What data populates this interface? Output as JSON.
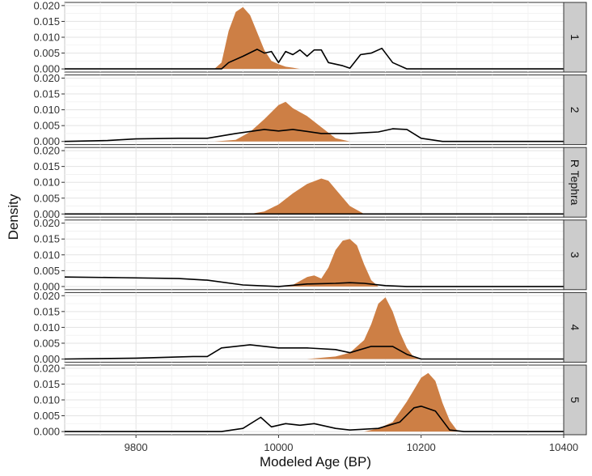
{
  "chart_data": {
    "type": "area",
    "xlabel": "Modeled Age (BP)",
    "ylabel": "Density",
    "xlim": [
      9700,
      10400
    ],
    "ylim": [
      0,
      0.02
    ],
    "x_ticks": [
      "9800",
      "10000",
      "10200",
      "10400"
    ],
    "y_ticks": [
      "0.000",
      "0.005",
      "0.010",
      "0.015",
      "0.020"
    ],
    "grid": true,
    "fill_color": "#CD7F45",
    "line_color": "#000000",
    "panels": [
      {
        "label": "1",
        "filled": [
          [
            9910,
            0
          ],
          [
            9920,
            0.002
          ],
          [
            9930,
            0.012
          ],
          [
            9940,
            0.018
          ],
          [
            9950,
            0.0195
          ],
          [
            9960,
            0.017
          ],
          [
            9970,
            0.0115
          ],
          [
            9980,
            0.006
          ],
          [
            9990,
            0.0025
          ],
          [
            10000,
            0.0015
          ],
          [
            10010,
            0.0007
          ],
          [
            10020,
            0.0004
          ],
          [
            10030,
            0
          ],
          [
            10040,
            0
          ]
        ],
        "line": [
          [
            9700,
            0
          ],
          [
            9920,
            0
          ],
          [
            9930,
            0.002
          ],
          [
            9950,
            0.004
          ],
          [
            9970,
            0.0062
          ],
          [
            9980,
            0.005
          ],
          [
            9990,
            0.0055
          ],
          [
            10000,
            0.002
          ],
          [
            10010,
            0.0055
          ],
          [
            10020,
            0.0045
          ],
          [
            10030,
            0.006
          ],
          [
            10040,
            0.004
          ],
          [
            10050,
            0.006
          ],
          [
            10060,
            0.006
          ],
          [
            10070,
            0.002
          ],
          [
            10090,
            0.001
          ],
          [
            10100,
            0.0002
          ],
          [
            10115,
            0.0045
          ],
          [
            10130,
            0.005
          ],
          [
            10145,
            0.0065
          ],
          [
            10160,
            0.002
          ],
          [
            10180,
            0
          ],
          [
            10200,
            0
          ],
          [
            10400,
            0
          ]
        ]
      },
      {
        "label": "2",
        "filled": [
          [
            9910,
            0
          ],
          [
            9940,
            0.0005
          ],
          [
            9960,
            0.003
          ],
          [
            9980,
            0.007
          ],
          [
            10000,
            0.0115
          ],
          [
            10010,
            0.0125
          ],
          [
            10020,
            0.0105
          ],
          [
            10040,
            0.008
          ],
          [
            10060,
            0.0045
          ],
          [
            10080,
            0.001
          ],
          [
            10100,
            0
          ],
          [
            10110,
            0
          ]
        ],
        "line": [
          [
            9700,
            0
          ],
          [
            9760,
            0.0003
          ],
          [
            9800,
            0.0008
          ],
          [
            9860,
            0.001
          ],
          [
            9900,
            0.001
          ],
          [
            9940,
            0.0025
          ],
          [
            9980,
            0.0038
          ],
          [
            10000,
            0.0033
          ],
          [
            10020,
            0.0038
          ],
          [
            10060,
            0.0025
          ],
          [
            10100,
            0.0025
          ],
          [
            10140,
            0.003
          ],
          [
            10160,
            0.004
          ],
          [
            10180,
            0.0038
          ],
          [
            10200,
            0.001
          ],
          [
            10230,
            0
          ],
          [
            10400,
            0
          ]
        ]
      },
      {
        "label": "R Tephra",
        "filled": [
          [
            9960,
            0
          ],
          [
            9980,
            0.0008
          ],
          [
            10000,
            0.003
          ],
          [
            10020,
            0.0065
          ],
          [
            10040,
            0.0095
          ],
          [
            10060,
            0.0112
          ],
          [
            10070,
            0.0105
          ],
          [
            10080,
            0.0078
          ],
          [
            10100,
            0.0025
          ],
          [
            10120,
            0
          ],
          [
            10130,
            0
          ]
        ],
        "line": [
          [
            9700,
            0
          ],
          [
            10400,
            0
          ]
        ]
      },
      {
        "label": "3",
        "filled": [
          [
            10000,
            0
          ],
          [
            10020,
            0.0005
          ],
          [
            10040,
            0.003
          ],
          [
            10050,
            0.0035
          ],
          [
            10060,
            0.0025
          ],
          [
            10070,
            0.006
          ],
          [
            10080,
            0.0115
          ],
          [
            10090,
            0.0145
          ],
          [
            10100,
            0.015
          ],
          [
            10110,
            0.013
          ],
          [
            10120,
            0.007
          ],
          [
            10130,
            0.002
          ],
          [
            10140,
            0
          ],
          [
            10150,
            0
          ]
        ],
        "line": [
          [
            9700,
            0.003
          ],
          [
            9780,
            0.0028
          ],
          [
            9860,
            0.0025
          ],
          [
            9900,
            0.002
          ],
          [
            9950,
            0.0005
          ],
          [
            10000,
            0
          ],
          [
            10040,
            0.0008
          ],
          [
            10080,
            0.001
          ],
          [
            10100,
            0.0012
          ],
          [
            10120,
            0.001
          ],
          [
            10150,
            0.0003
          ],
          [
            10180,
            0
          ],
          [
            10400,
            0
          ]
        ]
      },
      {
        "label": "4",
        "filled": [
          [
            10040,
            0
          ],
          [
            10080,
            0.0008
          ],
          [
            10100,
            0.002
          ],
          [
            10120,
            0.006
          ],
          [
            10130,
            0.011
          ],
          [
            10140,
            0.0175
          ],
          [
            10150,
            0.0195
          ],
          [
            10160,
            0.015
          ],
          [
            10170,
            0.0085
          ],
          [
            10180,
            0.0035
          ],
          [
            10190,
            0.0005
          ],
          [
            10200,
            0
          ],
          [
            10210,
            0
          ]
        ],
        "line": [
          [
            9700,
            0
          ],
          [
            9800,
            0.0003
          ],
          [
            9880,
            0.0008
          ],
          [
            9900,
            0.0008
          ],
          [
            9920,
            0.0035
          ],
          [
            9960,
            0.0045
          ],
          [
            10000,
            0.0035
          ],
          [
            10040,
            0.0035
          ],
          [
            10080,
            0.003
          ],
          [
            10100,
            0.002
          ],
          [
            10130,
            0.004
          ],
          [
            10160,
            0.004
          ],
          [
            10180,
            0.0015
          ],
          [
            10200,
            0
          ],
          [
            10400,
            0
          ]
        ]
      },
      {
        "label": "5",
        "filled": [
          [
            10120,
            0
          ],
          [
            10140,
            0.001
          ],
          [
            10160,
            0.003
          ],
          [
            10180,
            0.0095
          ],
          [
            10200,
            0.017
          ],
          [
            10210,
            0.0185
          ],
          [
            10220,
            0.016
          ],
          [
            10230,
            0.009
          ],
          [
            10240,
            0.0035
          ],
          [
            10250,
            0.0005
          ],
          [
            10260,
            0
          ],
          [
            10270,
            0
          ]
        ],
        "line": [
          [
            9700,
            0
          ],
          [
            9920,
            0
          ],
          [
            9950,
            0.001
          ],
          [
            9975,
            0.0045
          ],
          [
            9990,
            0.0015
          ],
          [
            10010,
            0.0025
          ],
          [
            10030,
            0.002
          ],
          [
            10050,
            0.0025
          ],
          [
            10080,
            0.001
          ],
          [
            10100,
            0.0005
          ],
          [
            10140,
            0.001
          ],
          [
            10170,
            0.003
          ],
          [
            10190,
            0.0075
          ],
          [
            10200,
            0.008
          ],
          [
            10220,
            0.0065
          ],
          [
            10240,
            0.0005
          ],
          [
            10260,
            0
          ],
          [
            10400,
            0
          ]
        ]
      }
    ]
  }
}
